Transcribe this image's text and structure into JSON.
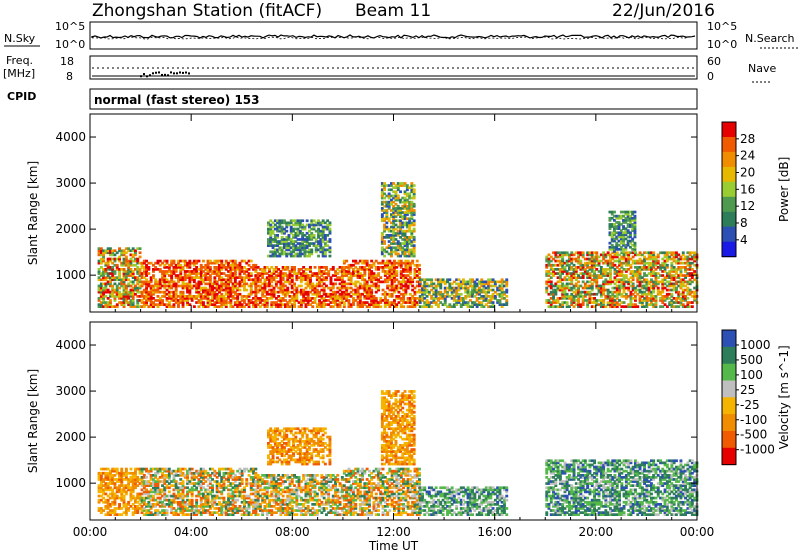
{
  "header": {
    "station": "Zhongshan Station (fitACF)",
    "beam": "Beam 11",
    "date": "22/Jun/2016"
  },
  "strip_nsky": {
    "left_label": "N.Sky",
    "left_ticks": [
      "10^5",
      "10^0"
    ],
    "right_label": "N.Search",
    "right_ticks": [
      "10^5",
      "10^0"
    ]
  },
  "strip_freq": {
    "left_label_line1": "Freq.",
    "left_label_line2": "[MHz]",
    "left_ticks": [
      "18",
      "8"
    ],
    "right_label": "Nave",
    "right_ticks": [
      "60",
      "0"
    ]
  },
  "cpid": {
    "label": "CPID",
    "text": "normal (fast stereo) 153"
  },
  "colors": {
    "power": [
      "#1a1ae6",
      "#2b4fb3",
      "#2e7d5a",
      "#4e9a4e",
      "#9acd32",
      "#e6b800",
      "#f08c00",
      "#f05a00",
      "#e60000"
    ],
    "velocity": [
      "#e60000",
      "#f05a00",
      "#f08c00",
      "#f5b400",
      "#bfbfbf",
      "#55b84a",
      "#2e7d5a",
      "#2b4fb3"
    ]
  },
  "chart_data": [
    {
      "type": "heatmap",
      "title": "",
      "xlabel": "",
      "ylabel": "Slant Range [km]",
      "xlim": [
        0,
        24
      ],
      "ylim": [
        200,
        4500
      ],
      "x_ticks": [
        "00:00",
        "04:00",
        "08:00",
        "12:00",
        "16:00",
        "20:00",
        "00:00"
      ],
      "y_ticks": [
        1000,
        2000,
        3000,
        4000
      ],
      "colorbar": {
        "label": "Power [dB]",
        "ticks": [
          4,
          8,
          12,
          16,
          20,
          24,
          28
        ],
        "range": [
          0,
          32
        ]
      },
      "series": [
        {
          "x_range": [
            0.3,
            2.0
          ],
          "y_range": [
            300,
            1600
          ],
          "level": "mixed-high"
        },
        {
          "x_range": [
            2.0,
            6.5
          ],
          "y_range": [
            300,
            1300
          ],
          "level": "high"
        },
        {
          "x_range": [
            6.5,
            10.0
          ],
          "y_range": [
            300,
            1200
          ],
          "level": "high"
        },
        {
          "x_range": [
            7.0,
            9.5
          ],
          "y_range": [
            1400,
            2200
          ],
          "level": "low"
        },
        {
          "x_range": [
            10.0,
            13.0
          ],
          "y_range": [
            300,
            1300
          ],
          "level": "high"
        },
        {
          "x_range": [
            11.5,
            12.8
          ],
          "y_range": [
            1400,
            3000
          ],
          "level": "mixed"
        },
        {
          "x_range": [
            13.0,
            16.5
          ],
          "y_range": [
            300,
            900
          ],
          "level": "mixed"
        },
        {
          "x_range": [
            18.0,
            24.0
          ],
          "y_range": [
            300,
            1500
          ],
          "level": "mixed-high"
        },
        {
          "x_range": [
            20.5,
            21.5
          ],
          "y_range": [
            1500,
            2400
          ],
          "level": "low"
        }
      ]
    },
    {
      "type": "heatmap",
      "title": "",
      "xlabel": "Time UT",
      "ylabel": "Slant Range [km]",
      "xlim": [
        0,
        24
      ],
      "ylim": [
        200,
        4500
      ],
      "x_ticks": [
        "00:00",
        "04:00",
        "08:00",
        "12:00",
        "16:00",
        "20:00",
        "00:00"
      ],
      "y_ticks": [
        1000,
        2000,
        3000,
        4000
      ],
      "colorbar": {
        "label": "Velocity [m s^-1]",
        "ticks": [
          1000,
          500,
          100,
          25,
          -25,
          -100,
          -500,
          -1000
        ]
      },
      "series": [
        {
          "x_range": [
            0.3,
            2.0
          ],
          "y_range": [
            300,
            1300
          ],
          "level": "negative"
        },
        {
          "x_range": [
            2.0,
            6.5
          ],
          "y_range": [
            300,
            1300
          ],
          "level": "mixed"
        },
        {
          "x_range": [
            6.5,
            10.0
          ],
          "y_range": [
            300,
            1200
          ],
          "level": "mixed"
        },
        {
          "x_range": [
            7.0,
            9.5
          ],
          "y_range": [
            1400,
            2200
          ],
          "level": "negative"
        },
        {
          "x_range": [
            10.0,
            13.0
          ],
          "y_range": [
            300,
            1300
          ],
          "level": "mixed"
        },
        {
          "x_range": [
            11.5,
            12.8
          ],
          "y_range": [
            1400,
            3000
          ],
          "level": "negative"
        },
        {
          "x_range": [
            13.0,
            16.5
          ],
          "y_range": [
            300,
            900
          ],
          "level": "positive"
        },
        {
          "x_range": [
            18.0,
            24.0
          ],
          "y_range": [
            300,
            1500
          ],
          "level": "positive"
        }
      ]
    }
  ]
}
